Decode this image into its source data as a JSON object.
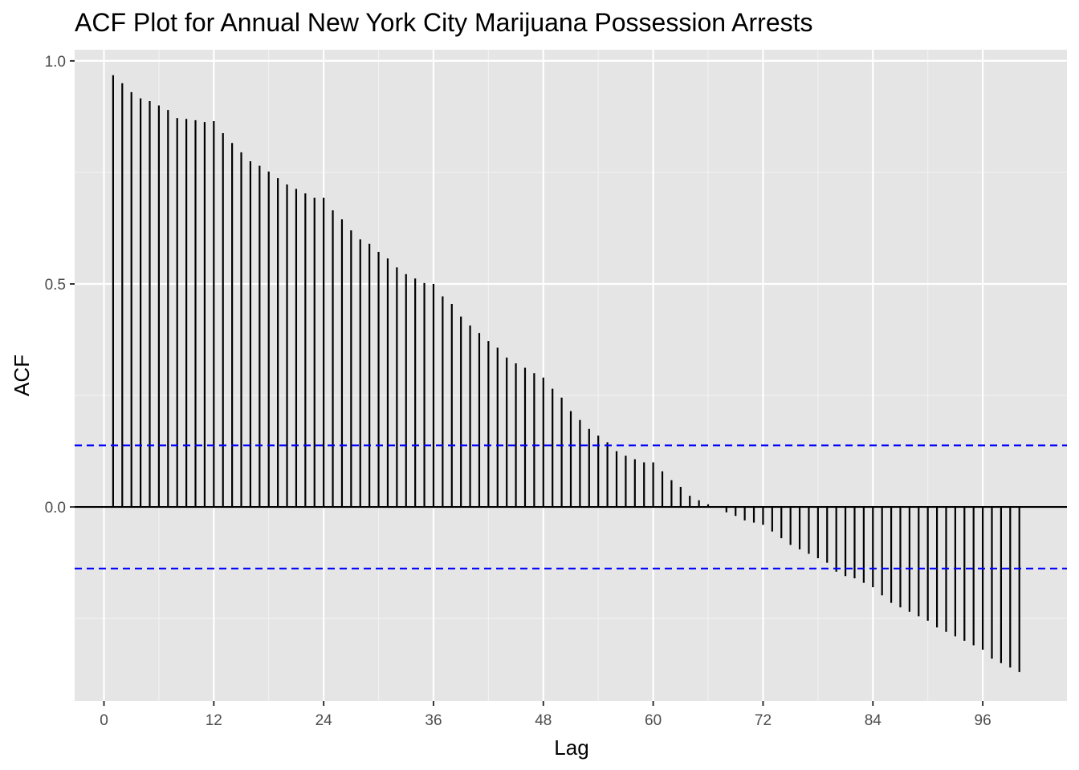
{
  "chart_data": {
    "type": "bar",
    "title": "ACF Plot for Annual New York City Marijuana Possession Arrests",
    "xlabel": "Lag",
    "ylabel": "ACF",
    "xlim": [
      -3.2,
      105.2
    ],
    "ylim": [
      -0.435,
      1.025
    ],
    "x_ticks": [
      0,
      12,
      24,
      36,
      48,
      60,
      72,
      84,
      96
    ],
    "x_tick_labels": [
      "0",
      "12",
      "24",
      "36",
      "48",
      "60",
      "72",
      "84",
      "96"
    ],
    "y_ticks": [
      0,
      0.5,
      1
    ],
    "y_tick_labels": [
      "0.0",
      "0.5",
      "1.0"
    ],
    "grid": true,
    "confidence_bound": 0.138,
    "confidence_color": "#0000ff",
    "bar_color": "#000000",
    "panel_color": "#e5e5e5",
    "lags": [
      1,
      2,
      3,
      4,
      5,
      6,
      7,
      8,
      9,
      10,
      11,
      12,
      13,
      14,
      15,
      16,
      17,
      18,
      19,
      20,
      21,
      22,
      23,
      24,
      25,
      26,
      27,
      28,
      29,
      30,
      31,
      32,
      33,
      34,
      35,
      36,
      37,
      38,
      39,
      40,
      41,
      42,
      43,
      44,
      45,
      46,
      47,
      48,
      49,
      50,
      51,
      52,
      53,
      54,
      55,
      56,
      57,
      58,
      59,
      60,
      61,
      62,
      63,
      64,
      65,
      66,
      67,
      68,
      69,
      70,
      71,
      72,
      73,
      74,
      75,
      76,
      77,
      78,
      79,
      80,
      81,
      82,
      83,
      84,
      85,
      86,
      87,
      88,
      89,
      90,
      91,
      92,
      93,
      94,
      95,
      96,
      97,
      98,
      99,
      100
    ],
    "values": [
      0.968,
      0.95,
      0.93,
      0.916,
      0.91,
      0.9,
      0.89,
      0.872,
      0.87,
      0.867,
      0.863,
      0.865,
      0.838,
      0.816,
      0.795,
      0.775,
      0.765,
      0.752,
      0.737,
      0.723,
      0.713,
      0.703,
      0.693,
      0.693,
      0.665,
      0.645,
      0.62,
      0.6,
      0.59,
      0.572,
      0.557,
      0.537,
      0.522,
      0.512,
      0.502,
      0.5,
      0.472,
      0.455,
      0.427,
      0.407,
      0.39,
      0.372,
      0.357,
      0.335,
      0.322,
      0.312,
      0.3,
      0.29,
      0.265,
      0.245,
      0.215,
      0.195,
      0.175,
      0.16,
      0.145,
      0.125,
      0.115,
      0.107,
      0.1,
      0.1,
      0.08,
      0.06,
      0.045,
      0.025,
      0.015,
      0.006,
      0.0,
      -0.012,
      -0.02,
      -0.03,
      -0.035,
      -0.04,
      -0.055,
      -0.07,
      -0.085,
      -0.095,
      -0.105,
      -0.115,
      -0.125,
      -0.145,
      -0.155,
      -0.16,
      -0.17,
      -0.18,
      -0.198,
      -0.215,
      -0.225,
      -0.235,
      -0.245,
      -0.255,
      -0.27,
      -0.28,
      -0.29,
      -0.3,
      -0.31,
      -0.32,
      -0.34,
      -0.35,
      -0.36,
      -0.37
    ]
  }
}
